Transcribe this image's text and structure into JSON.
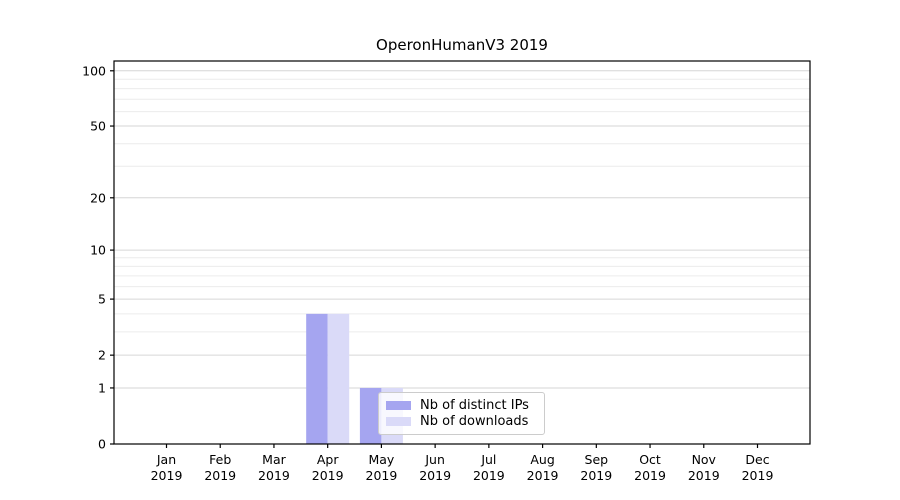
{
  "title": "OperonHumanV3 2019",
  "legend": {
    "items": [
      {
        "label": "Nb of distinct IPs",
        "color": "#a5a5f0"
      },
      {
        "label": "Nb of downloads",
        "color": "#dadaf8"
      }
    ]
  },
  "colors": {
    "bar_distinct_ips": "#a5a5f0",
    "bar_downloads": "#dadaf8",
    "grid_major": "#d6d6d6",
    "grid_minor": "#ececec",
    "axis": "#000000",
    "tick_label": "#000000"
  },
  "chart_data": {
    "type": "bar",
    "title": "OperonHumanV3 2019",
    "categories": [
      "Jan 2019",
      "Feb 2019",
      "Mar 2019",
      "Apr 2019",
      "May 2019",
      "Jun 2019",
      "Jul 2019",
      "Aug 2019",
      "Sep 2019",
      "Oct 2019",
      "Nov 2019",
      "Dec 2019"
    ],
    "series": [
      {
        "name": "Nb of distinct IPs",
        "color": "#a5a5f0",
        "values": [
          0,
          0,
          0,
          4,
          1,
          0,
          0,
          0,
          0,
          0,
          0,
          0
        ]
      },
      {
        "name": "Nb of downloads",
        "color": "#dadaf8",
        "values": [
          0,
          0,
          0,
          4,
          1,
          0,
          0,
          0,
          0,
          0,
          0,
          0
        ]
      }
    ],
    "xlabel": "",
    "ylabel": "",
    "y_axis": {
      "scale": "log1p",
      "major_ticks": [
        0,
        1,
        2,
        5,
        10,
        20,
        50,
        100
      ],
      "minor_ticks": [
        3,
        4,
        6,
        7,
        8,
        9,
        30,
        40,
        60,
        70,
        80,
        90
      ],
      "max": 113
    },
    "grid": true,
    "legend_position": "lower right inside plot"
  }
}
